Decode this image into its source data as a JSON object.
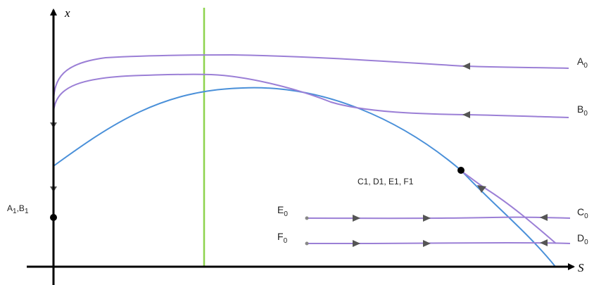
{
  "axes": {
    "x_label": "S",
    "y_label": "x"
  },
  "labels": {
    "a0": {
      "main": "A",
      "sub": "0"
    },
    "b0": {
      "main": "B",
      "sub": "0"
    },
    "c0": {
      "main": "C",
      "sub": "0"
    },
    "d0": {
      "main": "D",
      "sub": "0"
    },
    "e0": {
      "main": "E",
      "sub": "0"
    },
    "f0": {
      "main": "F",
      "sub": "0"
    },
    "a1b1": {
      "a": "A",
      "a_sub": "1",
      "sep": ",",
      "b": "B",
      "b_sub": "1"
    },
    "cluster": "C1, D1, E1, F1"
  },
  "colors": {
    "axis": "#000000",
    "trajectory": "#9b7fd6",
    "nullcline_parabola": "#4a90d9",
    "nullcline_vertical": "#8ed34e",
    "arrow": "#555555",
    "equilibrium_point": "#000000"
  }
}
